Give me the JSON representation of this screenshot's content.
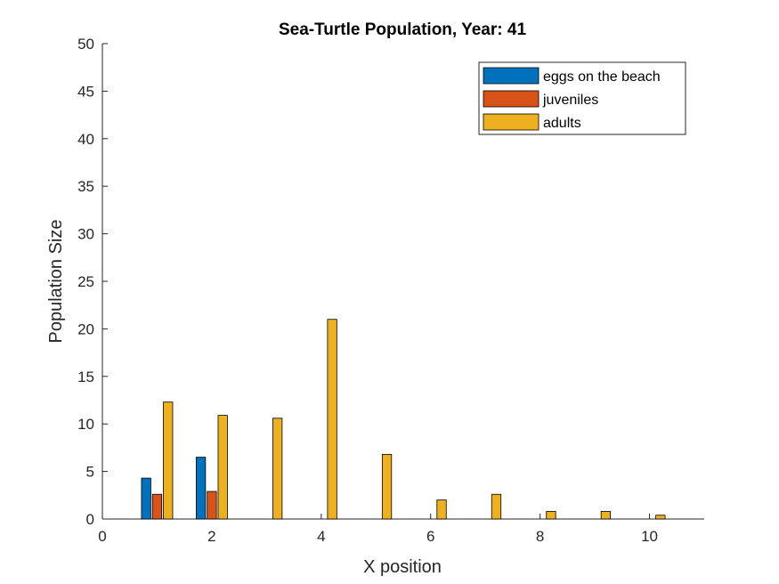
{
  "chart_data": {
    "type": "bar",
    "title": "Sea-Turtle Population, Year: 41",
    "xlabel": "X position",
    "ylabel": "Population Size",
    "xlim": [
      0,
      11
    ],
    "ylim": [
      0,
      50
    ],
    "xticks": [
      0,
      2,
      4,
      6,
      8,
      10
    ],
    "yticks": [
      0,
      5,
      10,
      15,
      20,
      25,
      30,
      35,
      40,
      45,
      50
    ],
    "x": [
      1,
      2,
      3,
      4,
      5,
      6,
      7,
      8,
      9,
      10
    ],
    "series": [
      {
        "name": "eggs on the beach",
        "color": "#0072BD",
        "values": [
          4.3,
          6.5,
          0,
          0,
          0,
          0,
          0,
          0,
          0,
          0
        ]
      },
      {
        "name": "juveniles",
        "color": "#D95319",
        "values": [
          2.6,
          2.9,
          0,
          0,
          0,
          0,
          0,
          0,
          0,
          0
        ]
      },
      {
        "name": "adults",
        "color": "#EDB120",
        "values": [
          12.3,
          10.9,
          10.6,
          21.0,
          6.8,
          2.0,
          2.6,
          0.8,
          0.8,
          0.4
        ]
      }
    ],
    "legend_position": "top-right",
    "grid": false
  }
}
